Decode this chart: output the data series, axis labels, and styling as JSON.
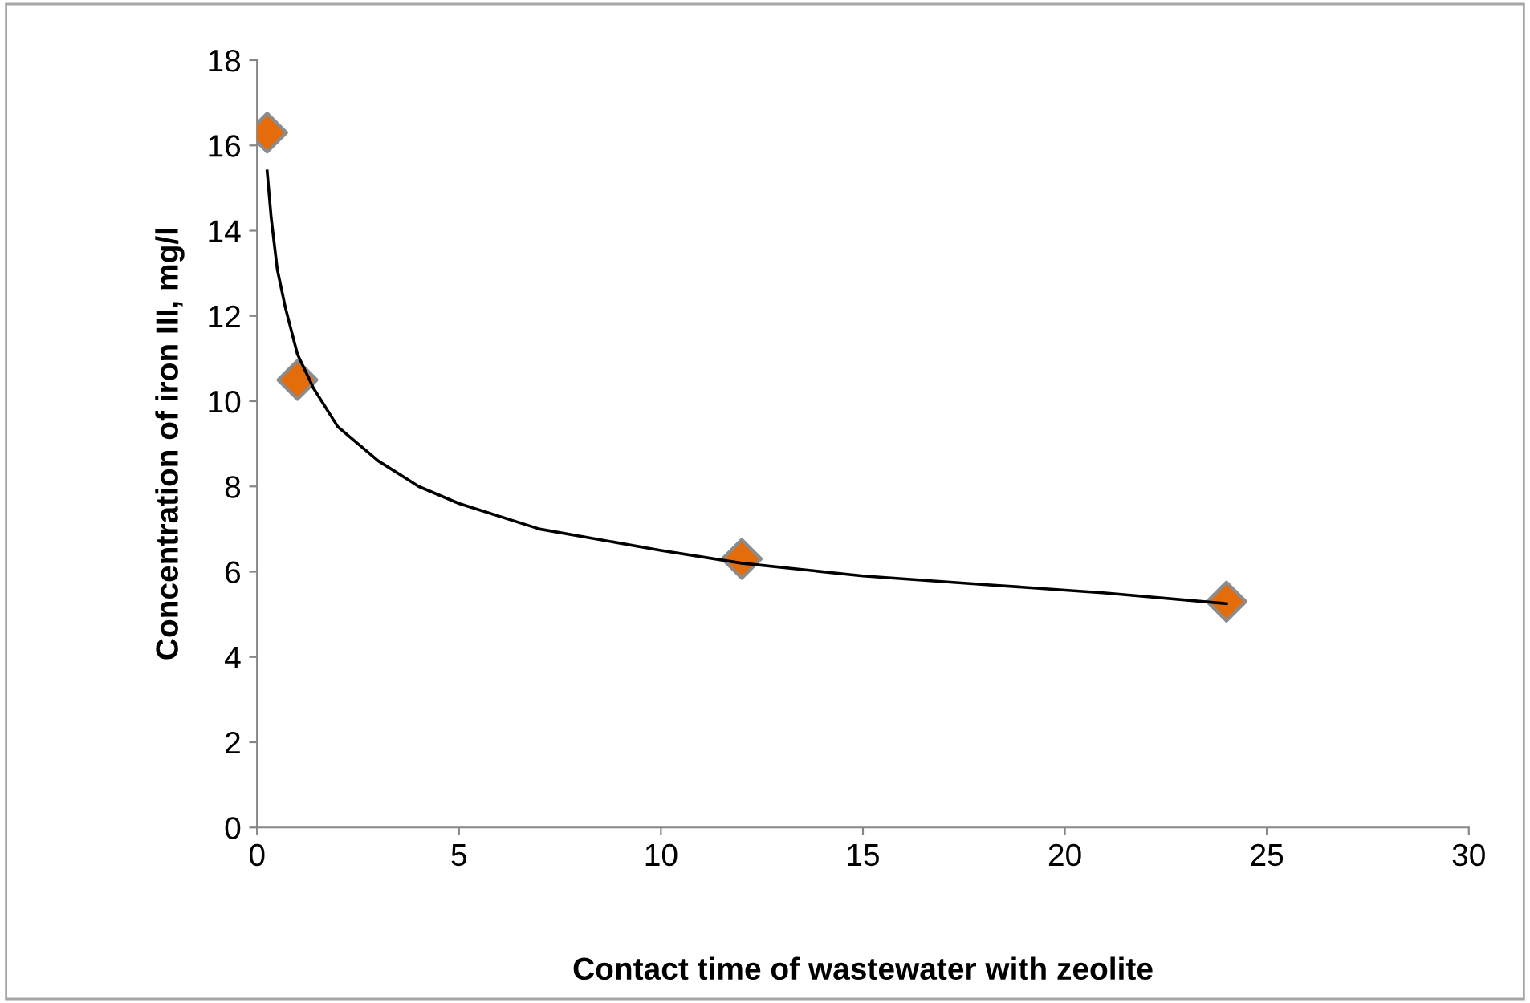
{
  "chart_data": {
    "type": "scatter",
    "xlabel": "Contact time of wastewater with zeolite",
    "ylabel": "Concentration of iron III, mg/l",
    "xlim": [
      0,
      30
    ],
    "xticks": [
      0,
      5,
      10,
      15,
      20,
      25,
      30
    ],
    "ylim": [
      0,
      18
    ],
    "yticks": [
      0,
      2,
      4,
      6,
      8,
      10,
      12,
      14,
      16,
      18
    ],
    "grid": false,
    "legend": false,
    "series": [
      {
        "color": "#e46c0a",
        "marker": "diamond",
        "x": [
          0.25,
          1,
          12,
          24
        ],
        "values": [
          16.3,
          10.5,
          6.3,
          5.3
        ]
      },
      {
        "type": "line",
        "color": "#000000",
        "marker": "none",
        "line_style": "solid",
        "x": [
          0.25,
          0.35,
          0.5,
          0.7,
          1,
          1.4,
          2,
          3,
          4,
          5,
          7,
          10,
          12,
          15,
          18,
          21,
          24
        ],
        "values": [
          15.4,
          14.3,
          13.1,
          12.2,
          11.1,
          10.3,
          9.4,
          8.6,
          8.0,
          7.6,
          7.0,
          6.5,
          6.2,
          5.9,
          5.7,
          5.5,
          5.25
        ]
      }
    ]
  }
}
